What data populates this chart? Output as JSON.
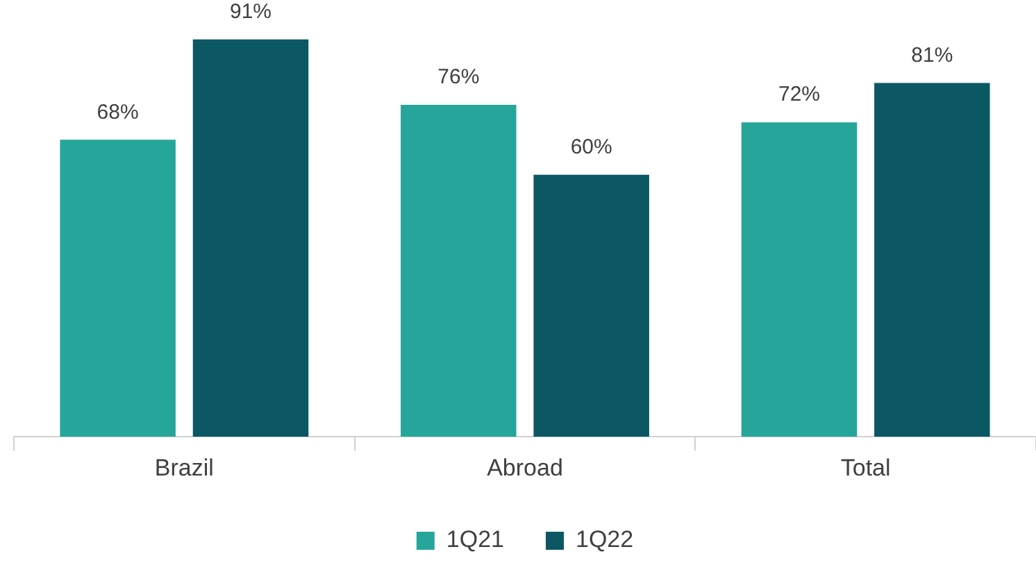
{
  "chart_data": {
    "type": "bar",
    "categories": [
      "Brazil",
      "Abroad",
      "Total"
    ],
    "series": [
      {
        "name": "1Q21",
        "color": "#26a69a",
        "values": [
          68,
          76,
          72
        ],
        "value_labels": [
          "68%",
          "76%",
          "72%"
        ]
      },
      {
        "name": "1Q22",
        "color": "#0b5864",
        "values": [
          91,
          60,
          81
        ],
        "value_labels": [
          "91%",
          "60%",
          "81%"
        ]
      }
    ],
    "tick_labels": "x",
    "grid": false,
    "legend": "bottom"
  }
}
